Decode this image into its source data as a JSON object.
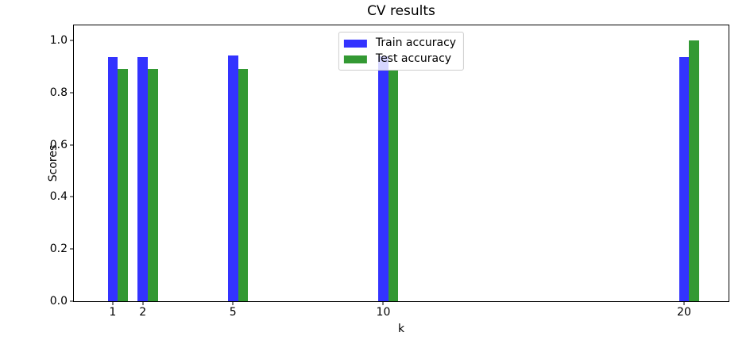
{
  "window": {
    "background": "#ffffff"
  },
  "chart_data": {
    "type": "bar",
    "title": "CV results",
    "xlabel": "k",
    "ylabel": "Scores",
    "categories": [
      1,
      2,
      5,
      10,
      20
    ],
    "xtick_labels": [
      "1",
      "2",
      "5",
      "10",
      "20"
    ],
    "series": [
      {
        "name": "Train accuracy",
        "color": "#3333ff",
        "values": [
          0.936,
          0.936,
          0.942,
          0.939,
          0.937
        ]
      },
      {
        "name": "Test accuracy",
        "color": "#339933",
        "values": [
          0.89,
          0.89,
          0.89,
          0.889,
          1.0
        ]
      }
    ],
    "bar_width": 0.334,
    "xlim": [
      -0.29,
      21.48
    ],
    "ylim": [
      0,
      1.058
    ],
    "yticks": [
      0.0,
      0.2,
      0.4,
      0.6,
      0.8,
      1.0
    ],
    "ytick_labels": [
      "0.0",
      "0.2",
      "0.4",
      "0.6",
      "0.8",
      "1.0"
    ],
    "grid": false,
    "legend_position": "upper center",
    "axis_color": "#000000",
    "legend_border_color": "#cccccc"
  }
}
